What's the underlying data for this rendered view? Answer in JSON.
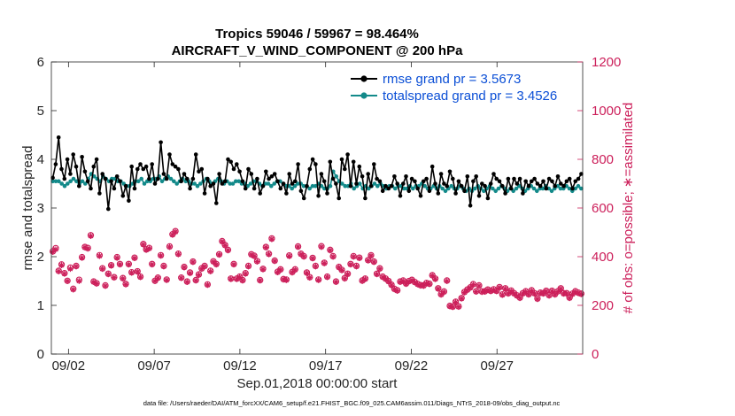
{
  "chart_data": {
    "type": "line",
    "title_line1": "Tropics 59046 / 59967 = 98.464%",
    "title_line2": "AIRCRAFT_V_WIND_COMPONENT @ 200 hPa",
    "xlabel": "Sep.01,2018 00:00:00 start",
    "ylabel_left": "rmse and totalspread",
    "ylabel_right": "# of obs: o=possible; ∗=assimilated",
    "x_tick_labels": [
      "09/02",
      "09/07",
      "09/12",
      "09/17",
      "09/22",
      "09/27"
    ],
    "x_tick_days": [
      2,
      7,
      12,
      17,
      22,
      27
    ],
    "xlim_days": [
      1,
      32
    ],
    "ylim_left": [
      0,
      6
    ],
    "yticks_left": [
      "0",
      "1",
      "2",
      "3",
      "4",
      "5",
      "6"
    ],
    "ylim_right": [
      0,
      1200
    ],
    "yticks_right": [
      "0",
      "200",
      "400",
      "600",
      "800",
      "1000",
      "1200"
    ],
    "legend_position": "top-right",
    "series": [
      {
        "name": "rmse grand pr = 3.5673",
        "axis": "left",
        "color": "#000000",
        "marker": "dot",
        "values": [
          3.62,
          3.9,
          4.45,
          3.8,
          3.6,
          4.0,
          3.7,
          4.1,
          3.85,
          3.45,
          4.05,
          3.75,
          3.55,
          3.4,
          3.85,
          4.0,
          3.3,
          3.7,
          3.6,
          2.98,
          3.55,
          3.4,
          3.65,
          3.55,
          3.25,
          3.45,
          3.15,
          3.85,
          3.4,
          3.8,
          3.9,
          3.8,
          3.85,
          3.6,
          3.9,
          3.5,
          3.6,
          4.35,
          3.7,
          3.6,
          4.1,
          3.9,
          3.85,
          3.8,
          3.55,
          3.7,
          3.6,
          3.4,
          3.6,
          4.1,
          3.75,
          3.8,
          3.3,
          3.6,
          3.45,
          3.5,
          3.1,
          3.7,
          3.5,
          3.55,
          4.0,
          3.95,
          3.8,
          3.9,
          3.75,
          3.55,
          3.4,
          3.8,
          3.7,
          3.4,
          3.6,
          3.3,
          3.45,
          3.75,
          3.6,
          3.65,
          3.7,
          3.55,
          3.4,
          3.5,
          3.3,
          3.7,
          3.5,
          3.55,
          3.9,
          3.35,
          3.2,
          3.45,
          3.8,
          4.0,
          3.9,
          3.25,
          3.7,
          3.55,
          3.3,
          3.95,
          3.6,
          3.5,
          3.2,
          4.0,
          3.8,
          4.1,
          3.45,
          3.95,
          3.5,
          3.85,
          3.65,
          3.2,
          3.7,
          3.45,
          3.9,
          3.6,
          3.55,
          3.35,
          3.45,
          3.4,
          3.45,
          3.65,
          3.5,
          3.25,
          3.5,
          3.65,
          3.35,
          3.6,
          3.55,
          3.4,
          3.25,
          3.55,
          3.6,
          3.35,
          3.85,
          3.5,
          3.3,
          3.7,
          3.5,
          3.45,
          3.75,
          3.6,
          3.3,
          3.55,
          3.45,
          3.35,
          3.65,
          3.05,
          3.55,
          3.65,
          3.25,
          3.5,
          3.45,
          3.2,
          3.5,
          3.7,
          3.6,
          3.55,
          3.45,
          3.3,
          3.6,
          3.4,
          3.6,
          3.5,
          3.6,
          3.3,
          3.55,
          3.45,
          3.55,
          3.6,
          3.5,
          3.45,
          3.55,
          3.4,
          3.6,
          3.55,
          3.45,
          3.65,
          3.5,
          3.45,
          3.55,
          3.6,
          3.4,
          3.55,
          3.6,
          3.7
        ]
      },
      {
        "name": "totalspread grand pr = 3.4526",
        "axis": "left",
        "color": "#138a8a",
        "marker": "dot",
        "values": [
          3.55,
          3.55,
          3.55,
          3.5,
          3.45,
          3.5,
          3.55,
          3.6,
          3.55,
          3.5,
          3.55,
          3.5,
          3.6,
          3.7,
          3.65,
          3.6,
          3.55,
          3.65,
          3.6,
          3.55,
          3.6,
          3.6,
          3.55,
          3.55,
          3.5,
          3.45,
          3.45,
          3.5,
          3.55,
          3.55,
          3.6,
          3.5,
          3.55,
          3.55,
          3.6,
          3.6,
          3.65,
          3.55,
          3.6,
          3.65,
          3.6,
          3.55,
          3.5,
          3.55,
          3.6,
          3.55,
          3.55,
          3.5,
          3.5,
          3.45,
          3.5,
          3.55,
          3.6,
          3.55,
          3.5,
          3.55,
          3.6,
          3.55,
          3.5,
          3.55,
          3.5,
          3.5,
          3.55,
          3.55,
          3.5,
          3.5,
          3.45,
          3.5,
          3.55,
          3.55,
          3.5,
          3.45,
          3.5,
          3.5,
          3.45,
          3.5,
          3.55,
          3.55,
          3.5,
          3.45,
          3.45,
          3.4,
          3.45,
          3.5,
          3.5,
          3.45,
          3.45,
          3.4,
          3.45,
          3.45,
          3.5,
          3.45,
          3.4,
          3.4,
          3.45,
          3.75,
          3.65,
          3.55,
          3.5,
          3.45,
          3.45,
          3.5,
          3.4,
          3.45,
          3.5,
          3.4,
          3.45,
          3.4,
          3.45,
          3.5,
          3.45,
          3.5,
          3.45,
          3.4,
          3.45,
          3.45,
          3.4,
          3.45,
          3.45,
          3.4,
          3.4,
          3.45,
          3.4,
          3.45,
          3.45,
          3.5,
          3.45,
          3.4,
          3.4,
          3.45,
          3.4,
          3.45,
          3.4,
          3.35,
          3.4,
          3.45,
          3.4,
          3.4,
          3.45,
          3.4,
          3.35,
          3.4,
          3.35,
          3.4,
          3.45,
          3.4,
          3.35,
          3.4,
          3.45,
          3.4,
          3.35,
          3.4,
          3.45,
          3.4,
          3.35,
          3.4,
          3.35,
          3.4,
          3.45,
          3.4,
          3.35,
          3.4,
          3.45,
          3.4,
          3.35,
          3.4,
          3.4,
          3.45,
          3.4,
          3.35,
          3.4,
          3.45,
          3.4,
          3.4,
          3.45,
          3.4,
          3.35,
          3.4,
          3.45,
          3.4
        ]
      }
    ],
    "obs_counts": {
      "axis": "right",
      "color": "#cc1f5a",
      "possible_marker": "o",
      "assimilated_marker": "*",
      "possible": [
        422,
        435,
        342,
        368,
        332,
        301,
        355,
        268,
        362,
        305,
        398,
        440,
        436,
        488,
        298,
        291,
        406,
        352,
        282,
        330,
        365,
        316,
        398,
        370,
        312,
        288,
        370,
        336,
        396,
        340,
        318,
        452,
        430,
        436,
        370,
        301,
        314,
        406,
        362,
        306,
        442,
        492,
        505,
        412,
        314,
        358,
        298,
        335,
        380,
        304,
        327,
        352,
        362,
        286,
        342,
        381,
        370,
        410,
        464,
        448,
        428,
        310,
        370,
        310,
        318,
        304,
        332,
        362,
        410,
        404,
        382,
        304,
        350,
        440,
        412,
        475,
        384,
        338,
        348,
        308,
        306,
        405,
        337,
        348,
        442,
        412,
        402,
        335,
        316,
        395,
        362,
        306,
        443,
        375,
        318,
        428,
        402,
        298,
        358,
        346,
        312,
        330,
        370,
        402,
        362,
        396,
        302,
        310,
        386,
        406,
        380,
        330,
        352,
        318,
        310,
        300,
        285,
        268,
        262,
        298,
        302,
        290,
        300,
        305,
        296,
        288,
        283,
        282,
        292,
        289,
        324,
        310,
        270,
        246,
        257,
        302,
        198,
        195,
        215,
        196,
        230,
        255,
        265,
        274,
        287,
        258,
        282,
        257,
        258,
        265,
        260,
        266,
        260,
        275,
        245,
        270,
        250,
        261,
        250,
        241,
        232,
        250,
        258,
        246,
        262,
        250,
        228,
        252,
        250,
        260,
        242,
        260,
        246,
        258,
        270,
        250,
        250,
        232,
        248,
        258,
        252,
        248
      ],
      "assimilated": [
        420,
        430,
        340,
        365,
        330,
        300,
        350,
        265,
        360,
        300,
        395,
        438,
        433,
        485,
        296,
        289,
        403,
        350,
        280,
        328,
        363,
        314,
        395,
        368,
        310,
        286,
        368,
        334,
        394,
        338,
        316,
        450,
        428,
        434,
        368,
        300,
        312,
        404,
        360,
        304,
        440,
        490,
        502,
        410,
        312,
        356,
        296,
        332,
        378,
        302,
        325,
        350,
        360,
        284,
        340,
        379,
        368,
        408,
        462,
        446,
        426,
        308,
        368,
        308,
        316,
        302,
        330,
        360,
        408,
        402,
        380,
        302,
        348,
        438,
        410,
        472,
        382,
        336,
        346,
        306,
        304,
        402,
        335,
        346,
        440,
        410,
        400,
        333,
        314,
        393,
        360,
        304,
        440,
        373,
        316,
        426,
        400,
        296,
        356,
        344,
        310,
        328,
        368,
        400,
        360,
        394,
        300,
        308,
        384,
        404,
        378,
        328,
        350,
        316,
        308,
        298,
        283,
        266,
        260,
        296,
        300,
        288,
        298,
        303,
        294,
        286,
        281,
        280,
        290,
        287,
        322,
        308,
        268,
        244,
        255,
        300,
        196,
        193,
        213,
        194,
        228,
        253,
        263,
        272,
        285,
        256,
        280,
        255,
        256,
        263,
        258,
        264,
        258,
        273,
        243,
        268,
        248,
        259,
        248,
        239,
        230,
        248,
        256,
        244,
        260,
        248,
        226,
        250,
        248,
        258,
        240,
        258,
        244,
        256,
        268,
        248,
        248,
        230,
        246,
        256,
        250,
        246
      ]
    },
    "footnote": "data file: /Users/raeder/DAI/ATM_forcXX/CAM6_setup/f.e21.FHIST_BGC.f09_025.CAM6assim.011/Diags_NTrS_2018-09/obs_diag_output.nc"
  }
}
